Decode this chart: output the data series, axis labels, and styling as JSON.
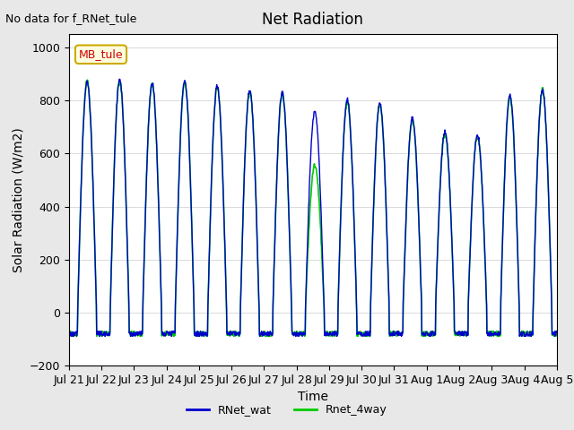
{
  "title": "Net Radiation",
  "xlabel": "Time",
  "ylabel": "Solar Radiation (W/m2)",
  "ylim": [
    -200,
    1050
  ],
  "yticks": [
    -200,
    0,
    200,
    400,
    600,
    800,
    1000
  ],
  "bg_color": "#e8e8e8",
  "plot_bg_color": "#ffffff",
  "line1_color": "#0000cc",
  "line2_color": "#00cc00",
  "line1_label": "RNet_wat",
  "line2_label": "Rnet_4way",
  "annotation_text": "No data for f_RNet_tule",
  "legend_label": "MB_tule",
  "legend_color": "#cc0000",
  "n_days": 15,
  "start_day": 21,
  "tick_labels": [
    "Jul 21",
    "Jul 22",
    "Jul 23",
    "Jul 24",
    "Jul 25",
    "Jul 26",
    "Jul 27",
    "Jul 28",
    "Jul 29",
    "Jul 30",
    "Jul 31",
    "Aug 1",
    "Aug 2",
    "Aug 3",
    "Aug 4",
    "Aug 5"
  ]
}
